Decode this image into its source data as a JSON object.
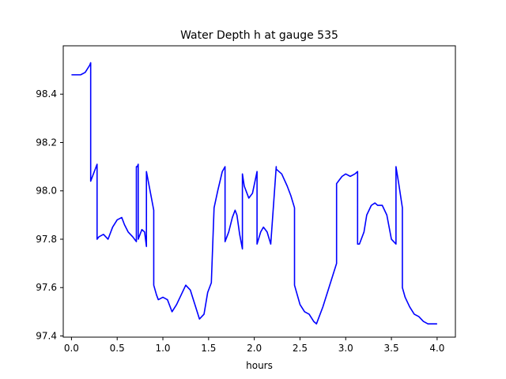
{
  "chart_data": {
    "type": "line",
    "title": "Water Depth h at gauge 535",
    "xlabel": "hours",
    "ylabel": "",
    "xlim": [
      -0.09,
      4.2
    ],
    "ylim": [
      97.395,
      98.6
    ],
    "xticks": [
      0.0,
      0.5,
      1.0,
      1.5,
      2.0,
      2.5,
      3.0,
      3.5,
      4.0
    ],
    "xtick_labels": [
      "0.0",
      "0.5",
      "1.0",
      "1.5",
      "2.0",
      "2.5",
      "3.0",
      "3.5",
      "4.0"
    ],
    "yticks": [
      97.4,
      97.6,
      97.8,
      98.0,
      98.2,
      98.4
    ],
    "ytick_labels": [
      "97.4",
      "97.6",
      "97.8",
      "98.0",
      "98.2",
      "98.4"
    ],
    "grid": false,
    "legend": "none",
    "series": [
      {
        "name": "",
        "color": "#0000ff",
        "x": [
          0.0,
          0.1,
          0.15,
          0.2,
          0.21,
          0.21,
          0.25,
          0.28,
          0.28,
          0.3,
          0.35,
          0.4,
          0.45,
          0.5,
          0.55,
          0.58,
          0.62,
          0.67,
          0.71,
          0.71,
          0.72,
          0.73,
          0.73,
          0.77,
          0.8,
          0.82,
          0.82,
          0.84,
          0.9,
          0.9,
          0.93,
          0.95,
          1.0,
          1.05,
          1.1,
          1.15,
          1.2,
          1.25,
          1.3,
          1.35,
          1.4,
          1.45,
          1.49,
          1.53,
          1.56,
          1.56,
          1.6,
          1.65,
          1.68,
          1.68,
          1.72,
          1.76,
          1.79,
          1.81,
          1.84,
          1.87,
          1.87,
          1.89,
          1.94,
          1.98,
          2.03,
          2.03,
          2.07,
          2.1,
          2.14,
          2.18,
          2.24,
          2.24,
          2.3,
          2.36,
          2.4,
          2.44,
          2.44,
          2.5,
          2.55,
          2.6,
          2.65,
          2.68,
          2.75,
          2.8,
          2.85,
          2.9,
          2.9,
          2.92,
          2.96,
          3.0,
          3.05,
          3.1,
          3.13,
          3.13,
          3.15,
          3.2,
          3.23,
          3.28,
          3.32,
          3.35,
          3.4,
          3.45,
          3.5,
          3.55,
          3.55,
          3.58,
          3.62,
          3.62,
          3.65,
          3.7,
          3.75,
          3.8,
          3.85,
          3.9,
          3.95,
          4.0
        ],
        "y": [
          98.48,
          98.48,
          98.49,
          98.52,
          98.53,
          98.04,
          98.08,
          98.11,
          97.8,
          97.81,
          97.82,
          97.8,
          97.85,
          97.88,
          97.89,
          97.86,
          97.83,
          97.81,
          97.79,
          98.1,
          98.1,
          98.11,
          97.8,
          97.84,
          97.83,
          97.77,
          98.08,
          98.04,
          97.92,
          97.61,
          97.57,
          97.55,
          97.56,
          97.55,
          97.5,
          97.53,
          97.57,
          97.61,
          97.59,
          97.53,
          97.47,
          97.49,
          97.58,
          97.62,
          97.93,
          97.93,
          98.0,
          98.08,
          98.1,
          97.79,
          97.83,
          97.89,
          97.92,
          97.9,
          97.82,
          97.76,
          98.07,
          98.02,
          97.97,
          97.99,
          98.08,
          97.78,
          97.83,
          97.85,
          97.83,
          97.78,
          98.1,
          98.09,
          98.07,
          98.02,
          97.98,
          97.93,
          97.61,
          97.53,
          97.5,
          97.49,
          97.46,
          97.45,
          97.52,
          97.58,
          97.64,
          97.7,
          98.03,
          98.04,
          98.06,
          98.07,
          98.06,
          98.07,
          98.08,
          97.78,
          97.78,
          97.83,
          97.9,
          97.94,
          97.95,
          97.94,
          97.94,
          97.9,
          97.8,
          97.78,
          98.1,
          98.03,
          97.93,
          97.6,
          97.56,
          97.52,
          97.49,
          97.48,
          97.46,
          97.45,
          97.45,
          97.45
        ]
      }
    ]
  }
}
